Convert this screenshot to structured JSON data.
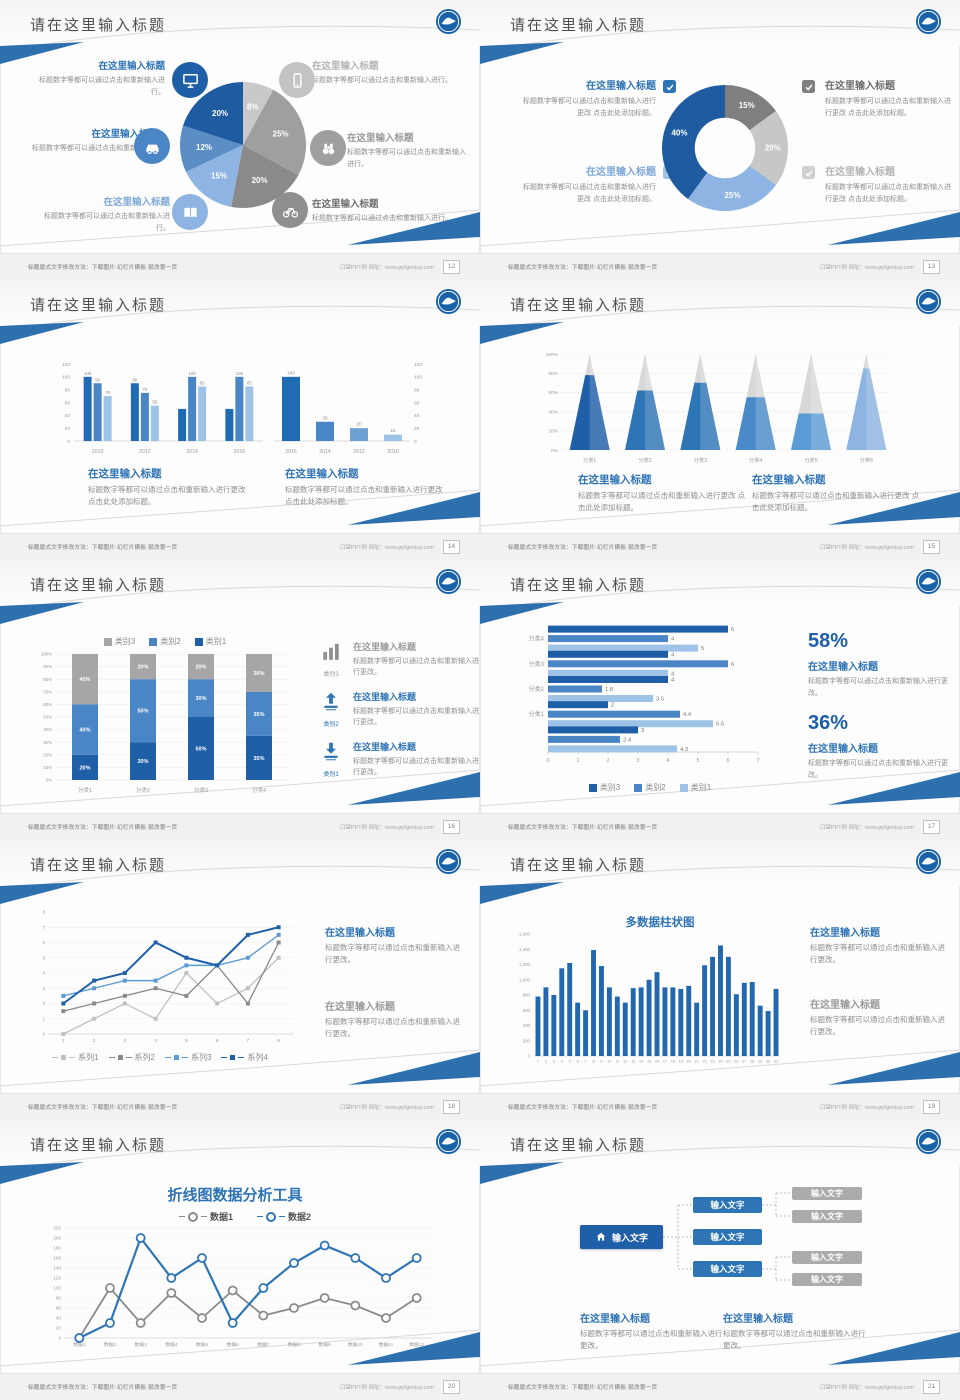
{
  "palette": {
    "accent": "#2e74b5",
    "dark_blue": "#1f5fa8",
    "mid_blue": "#4a86c5",
    "light_blue": "#8db4e2",
    "ribbon_blue": "#2e6fae",
    "gray": "#a6a6a6"
  },
  "footer": {
    "left": "标题版式文字修改方法：下载图片·幻灯片模板·就改第一页",
    "right": "口袋PPT网 网址：www.pptgenius.com"
  },
  "slides": [
    {
      "page": "12",
      "title": "请在这里输入标题",
      "blocks": [
        {
          "title": "在这里输入标题",
          "body": "标题数字等都可以通过点击和重新输入进行。"
        },
        {
          "title": "在这里输入标题",
          "body": "标题数字等都可以通过点击和重新输入进行。"
        },
        {
          "title": "在这里输入标题",
          "body": "标题数字等都可以通过点击和重新输入进行。"
        },
        {
          "title": "在这里输入标题",
          "body": "标题数字等都可以通过点击和重新输入进行。"
        },
        {
          "title": "在这里输入标题",
          "body": "标题数字等都可以通过点击和重新输入进行。"
        },
        {
          "title": "在这里输入标题",
          "body": "标题数字等都可以通过点击和重新输入进行。"
        }
      ],
      "icons": [
        "monitor-icon",
        "car-icon",
        "book-icon",
        "smartphone-icon",
        "binoculars-icon",
        "bicycle-icon"
      ],
      "chart_data": {
        "type": "pie",
        "title": "",
        "values": [
          8,
          25,
          20,
          15,
          12,
          20
        ],
        "labels": [
          "8%",
          "25%",
          "20%",
          "15%",
          "12%",
          "20%"
        ],
        "colors": [
          "#c9c9c9",
          "#9f9f9f",
          "#8a8a8a",
          "#8db4e2",
          "#5b8ec4",
          "#1f5ba0"
        ]
      }
    },
    {
      "page": "13",
      "title": "请在这里输入标题",
      "blocks": [
        {
          "title": "在这里输入标题",
          "body": "标题数字等都可以通过点击和重新输入进行更改 点击此处添加标题。"
        },
        {
          "title": "在这里输入标题",
          "body": "标题数字等都可以通过点击和重新输入进行更改 点击此处添加标题。"
        },
        {
          "title": "在这里输入标题",
          "body": "标题数字等都可以通过点击和重新输入进行更改 点击此处添加标题。"
        },
        {
          "title": "在这里输入标题",
          "body": "标题数字等都可以通过点击和重新输入进行更改 点击此处添加标题。"
        }
      ],
      "checkbox_colors": [
        "#2e74b5",
        "#9dc3e6",
        "#7f7f7f",
        "#d0d0d0"
      ],
      "chart_data": {
        "type": "donut",
        "values": [
          15,
          20,
          25,
          40
        ],
        "labels": [
          "15%",
          "20%",
          "25%",
          "40%"
        ],
        "colors": [
          "#7f7f7f",
          "#c7c7c7",
          "#8db4e2",
          "#1f5ba0"
        ],
        "inner_ratio": 0.48
      }
    },
    {
      "page": "14",
      "title": "请在这里输入标题",
      "blocks": [
        {
          "title": "在这里输入标题",
          "body": "标题数字等都可以通过点击和重新输入进行更改 点击此处添加标题。"
        },
        {
          "title": "在这里输入标题",
          "body": "标题数字等都可以通过点击和重新输入进行更改 点击此处添加标题。"
        }
      ],
      "chart_data": [
        {
          "type": "gbar",
          "categories": [
            "2010",
            "2012",
            "2014",
            "2016"
          ],
          "ylim": [
            0,
            120
          ],
          "yticks": [
            0,
            20,
            40,
            60,
            80,
            100,
            120
          ],
          "series": [
            {
              "name": "系列1",
              "color": "#1f6bb4",
              "values": [
                100,
                90,
                50,
                50
              ],
              "labels": [
                "100",
                "90",
                "",
                ""
              ]
            },
            {
              "name": "系列2",
              "color": "#4a86c5",
              "values": [
                90,
                75,
                100,
                100
              ],
              "labels": [
                "90",
                "75",
                "100",
                "100"
              ]
            },
            {
              "name": "系列3",
              "color": "#9dc3e6",
              "values": [
                70,
                55,
                85,
                85
              ],
              "labels": [
                "70",
                "55",
                "85",
                "85"
              ]
            }
          ]
        },
        {
          "type": "sbar",
          "categories": [
            "2016",
            "2014",
            "2012",
            "2010"
          ],
          "ylim": [
            0,
            120
          ],
          "yticks": [
            0,
            20,
            40,
            60,
            80,
            100,
            120
          ],
          "values": [
            100,
            30,
            20,
            10
          ],
          "labels": [
            "100",
            "30",
            "20",
            "10"
          ],
          "colors": [
            "#1f6bb4",
            "#4a86c5",
            "#6fa0d4",
            "#9dc3e6"
          ]
        }
      ]
    },
    {
      "page": "15",
      "title": "请在这里输入标题",
      "blocks": [
        {
          "title": "在这里输入标题",
          "body": "标题数字等都可以通过点击和重新输入进行更改 点击此处添加标题。"
        },
        {
          "title": "在这里输入标题",
          "body": "标题数字等都可以通过点击和重新输入进行更改 点击此处添加标题。"
        }
      ],
      "chart_data": {
        "type": "pyramid",
        "categories": [
          "分类1",
          "分类2",
          "分类3",
          "分类4",
          "分类5",
          "分类6"
        ],
        "fills": [
          78,
          62,
          70,
          55,
          38,
          85
        ],
        "colors": [
          "#1f5fa8",
          "#2e75b6",
          "#2e75b6",
          "#4a8ac8",
          "#5b9bd5",
          "#8db4e2"
        ],
        "rest_color": "#d8d8d8",
        "yticks": [
          0,
          20,
          40,
          60,
          80,
          100
        ]
      }
    },
    {
      "page": "16",
      "title": "请在这里输入标题",
      "items": [
        {
          "label": "类别3",
          "icon": "bar-chart-icon",
          "title": "在这里输入标题",
          "body": "标题数字等都可以通过点击和重新输入进行更改。"
        },
        {
          "label": "类别2",
          "icon": "upload-icon",
          "title": "在这里输入标题",
          "body": "标题数字等都可以通过点击和重新输入进行更改。"
        },
        {
          "label": "类别1",
          "icon": "download-icon",
          "title": "在这里输入标题",
          "body": "标题数字等都可以通过点击和重新输入进行更改。"
        }
      ],
      "chart_data": {
        "type": "stacked",
        "categories": [
          "分类1",
          "分类2",
          "分类3",
          "分类4"
        ],
        "series": [
          {
            "name": "类别1",
            "color": "#1f5fa8",
            "values": [
              20,
              30,
              50,
              35
            ]
          },
          {
            "name": "类别2",
            "color": "#4a86c5",
            "values": [
              40,
              50,
              30,
              35
            ]
          },
          {
            "name": "类别3",
            "color": "#a6a6a6",
            "values": [
              40,
              20,
              20,
              30
            ]
          }
        ],
        "yticks": [
          0,
          10,
          20,
          30,
          40,
          50,
          60,
          70,
          80,
          90,
          100
        ],
        "legend": {
          "position": "top",
          "items": [
            {
              "label": "类别3",
              "color": "#a6a6a6"
            },
            {
              "label": "类别2",
              "color": "#4a86c5"
            },
            {
              "label": "类别1",
              "color": "#1f5fa8"
            }
          ]
        }
      }
    },
    {
      "page": "17",
      "title": "请在这里输入标题",
      "blocks": [
        {
          "pct": "58%",
          "title": "在这里输入标题",
          "body": "标题数字等都可以通过点击和重新输入进行更改。"
        },
        {
          "pct": "36%",
          "title": "在这里输入标题",
          "body": "标题数字等都可以通过点击和重新输入进行更改。"
        }
      ],
      "chart_data": {
        "type": "hbar",
        "xmax": 7,
        "xticks": [
          0,
          1,
          2,
          3,
          4,
          5,
          6,
          7
        ],
        "groups": [
          {
            "label": "分类4",
            "values": [
              6,
              4,
              5
            ]
          },
          {
            "label": "分类3",
            "values": [
              4,
              6,
              4
            ]
          },
          {
            "label": "分类2",
            "values": [
              4,
              1.8,
              3.5
            ]
          },
          {
            "label": "分类1",
            "values": [
              2,
              4.4,
              5.5
            ]
          },
          {
            "label": "",
            "values": [
              3,
              2.4,
              4.3
            ]
          }
        ],
        "colors": [
          "#1f5fa8",
          "#4a86c5",
          "#9dc3e6"
        ],
        "legend": {
          "position": "bottom",
          "items": [
            {
              "label": "类别3",
              "color": "#1f5fa8"
            },
            {
              "label": "类别2",
              "color": "#4a86c5"
            },
            {
              "label": "类别1",
              "color": "#9dc3e6"
            }
          ]
        }
      }
    },
    {
      "page": "18",
      "title": "请在这里输入标题",
      "blocks": [
        {
          "title": "在这里输入标题",
          "body": "标题数字等都可以通过点击和重新输入进行更改。"
        },
        {
          "title": "在这里输入标题",
          "body": "标题数字等都可以通过点击和重新输入进行更改。"
        }
      ],
      "chart_data": {
        "type": "line",
        "x_labels": [
          "1",
          "2",
          "3",
          "4",
          "5",
          "6",
          "7",
          "8"
        ],
        "ylim": [
          0,
          8
        ],
        "yticks": [
          0,
          1,
          2,
          3,
          4,
          5,
          6,
          7,
          8
        ],
        "series": [
          {
            "name": "系列1",
            "color": "#c0c0c0",
            "values": [
              0,
              1,
              2,
              1,
              4,
              2,
              3,
              5
            ],
            "marker": "square",
            "lw": 1.3
          },
          {
            "name": "系列2",
            "color": "#898989",
            "values": [
              1.5,
              2,
              2.5,
              3,
              2.5,
              4.5,
              2,
              6
            ],
            "marker": "square",
            "lw": 1.3
          },
          {
            "name": "系列3",
            "color": "#5b9bd5",
            "values": [
              2.5,
              3,
              3.5,
              3.5,
              4.5,
              4.5,
              5,
              6.5
            ],
            "marker": "square",
            "lw": 1.4
          },
          {
            "name": "系列4",
            "color": "#1f5fa8",
            "values": [
              2,
              3.5,
              4,
              6,
              5,
              4.5,
              6.5,
              7
            ],
            "marker": "square",
            "lw": 2
          }
        ],
        "legend": {
          "position": "bottom",
          "items": [
            {
              "label": "系列1",
              "color": "#c0c0c0"
            },
            {
              "label": "系列2",
              "color": "#898989"
            },
            {
              "label": "系列3",
              "color": "#5b9bd5"
            },
            {
              "label": "系列4",
              "color": "#1f5fa8"
            }
          ]
        }
      }
    },
    {
      "page": "19",
      "title": "请在这里输入标题",
      "chart_title": "多数据柱状图",
      "blocks": [
        {
          "title": "在这里输入标题",
          "body": "标题数字等都可以通过点击和重新输入进行更改。"
        },
        {
          "title": "在这里输入标题",
          "body": "标题数字等都可以通过点击和重新输入进行更改。"
        }
      ],
      "chart_data": {
        "type": "column",
        "ylim": [
          0,
          1600
        ],
        "yticks": [
          0,
          200,
          400,
          600,
          800,
          1000,
          1200,
          1400,
          1600
        ],
        "ytick_labels": [
          "0",
          "200",
          "400",
          "600",
          "800",
          "1,000",
          "1,200",
          "1,400",
          "1,600"
        ],
        "x_labels": [
          "1",
          "2",
          "3",
          "4",
          "5",
          "6",
          "7",
          "8",
          "9",
          "10",
          "11",
          "12",
          "13",
          "14",
          "15",
          "16",
          "17",
          "18",
          "19",
          "20",
          "21",
          "22",
          "23",
          "24",
          "25",
          "26",
          "27",
          "28",
          "29",
          "30",
          "31"
        ],
        "values": [
          780,
          900,
          800,
          1150,
          1220,
          700,
          600,
          1390,
          1180,
          900,
          780,
          700,
          890,
          900,
          1000,
          1100,
          900,
          900,
          880,
          920,
          700,
          1190,
          1300,
          1450,
          1300,
          810,
          960,
          970,
          660,
          590,
          880
        ],
        "color": "#2368ae"
      }
    },
    {
      "page": "20",
      "title": "请在这里输入标题",
      "chart_title": "折线图数据分析工具",
      "chart_data": {
        "type": "line",
        "x_labels": [
          "数据1",
          "数据2",
          "数据3",
          "数据4",
          "数据5",
          "数据6",
          "数据7",
          "数据8",
          "数据9",
          "数据10",
          "数据11",
          "数据12"
        ],
        "ylim": [
          0,
          220
        ],
        "yticks": [
          0,
          20,
          40,
          60,
          80,
          100,
          120,
          140,
          160,
          180,
          200,
          220
        ],
        "series": [
          {
            "name": "数据1",
            "color": "#8a8a8a",
            "values": [
              0,
              100,
              30,
              90,
              40,
              95,
              45,
              60,
              80,
              65,
              40,
              80
            ],
            "marker": "circle",
            "lw": 1.8
          },
          {
            "name": "数据2",
            "color": "#2e75b6",
            "values": [
              0,
              30,
              200,
              120,
              160,
              30,
              100,
              150,
              185,
              160,
              120,
              160
            ],
            "marker": "circle",
            "lw": 2.2
          }
        ],
        "legend": {
          "position": "top",
          "items": [
            {
              "label": "数据1",
              "color": "#8a8a8a"
            },
            {
              "label": "数据2",
              "color": "#2e75b6"
            }
          ]
        }
      }
    },
    {
      "page": "21",
      "title": "请在这里输入标题",
      "tree": {
        "root": "输入文字",
        "children": [
          "输入文字",
          "输入文字",
          "输入文字"
        ],
        "leaves": [
          "输入文字",
          "输入文字",
          "输入文字",
          "输入文字"
        ]
      },
      "blocks": [
        {
          "title": "在这里输入标题",
          "body": "标题数字等都可以通过点击和重新输入进行更改。"
        },
        {
          "title": "在这里输入标题",
          "body": "标题数字等都可以通过点击和重新输入进行更改。"
        }
      ]
    }
  ]
}
